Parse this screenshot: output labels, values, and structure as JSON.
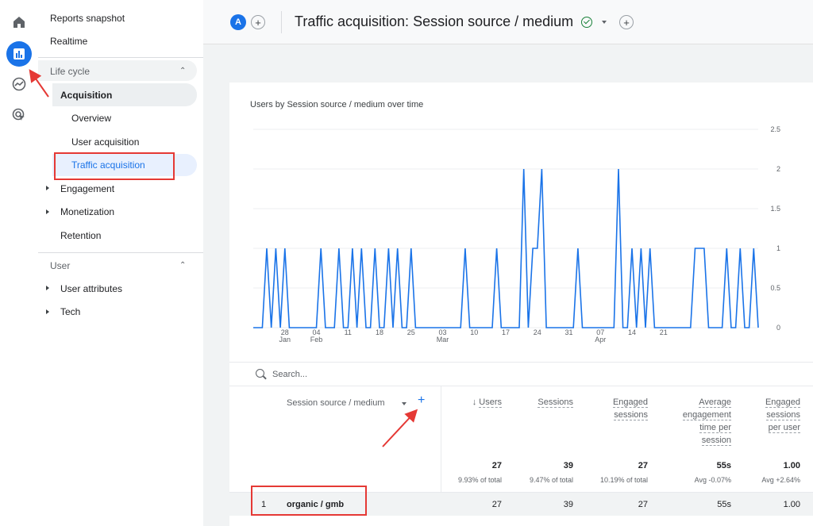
{
  "rail": {
    "items": [
      {
        "name": "home-icon",
        "active": false
      },
      {
        "name": "reports-icon",
        "active": true
      },
      {
        "name": "explore-icon",
        "active": false
      },
      {
        "name": "advertising-icon",
        "active": false
      }
    ]
  },
  "nav": {
    "reports_snapshot": "Reports snapshot",
    "realtime": "Realtime",
    "lifecycle": "Life cycle",
    "acquisition": "Acquisition",
    "overview": "Overview",
    "user_acquisition": "User acquisition",
    "traffic_acquisition": "Traffic acquisition",
    "engagement": "Engagement",
    "monetization": "Monetization",
    "retention": "Retention",
    "user": "User",
    "user_attributes": "User attributes",
    "tech": "Tech"
  },
  "header": {
    "avatar_letter": "A",
    "add_comparison": "+",
    "title": "Traffic acquisition: Session source / medium",
    "add": "+"
  },
  "chart_data": {
    "type": "line",
    "title": "Users by Session source / medium over time",
    "xlabel": "",
    "ylabel": "",
    "ylim": [
      0,
      2.5
    ],
    "y_ticks": [
      "0",
      "0.5",
      "1",
      "1.5",
      "2",
      "2.5"
    ],
    "x_tick_labels": [
      {
        "day": "28",
        "month": "Jan"
      },
      {
        "day": "04",
        "month": "Feb"
      },
      {
        "day": "11",
        "month": ""
      },
      {
        "day": "18",
        "month": ""
      },
      {
        "day": "25",
        "month": ""
      },
      {
        "day": "03",
        "month": "Mar"
      },
      {
        "day": "10",
        "month": ""
      },
      {
        "day": "17",
        "month": ""
      },
      {
        "day": "24",
        "month": ""
      },
      {
        "day": "31",
        "month": ""
      },
      {
        "day": "07",
        "month": "Apr"
      },
      {
        "day": "14",
        "month": ""
      },
      {
        "day": "21",
        "month": ""
      }
    ],
    "color": "#1a73e8",
    "series": [
      {
        "values": [
          0,
          0,
          0,
          1,
          0,
          1,
          0,
          1,
          0,
          0,
          0,
          0,
          0,
          0,
          0,
          1,
          0,
          0,
          0,
          1,
          0,
          0,
          1,
          0,
          1,
          0,
          0,
          1,
          0,
          0,
          1,
          0,
          1,
          0,
          0,
          1,
          0,
          0,
          0,
          0,
          0,
          0,
          0,
          0,
          0,
          0,
          0,
          1,
          0,
          0,
          0,
          0,
          0,
          0,
          1,
          0,
          0,
          0,
          0,
          0,
          2,
          0,
          1,
          1,
          2,
          0,
          0,
          0,
          0,
          0,
          0,
          0,
          1,
          0,
          0,
          0,
          0,
          0,
          0,
          0,
          0,
          2,
          0,
          0,
          1,
          0,
          1,
          0,
          1,
          0,
          0,
          0,
          0,
          0,
          0,
          0,
          0,
          0,
          1,
          1,
          1,
          0,
          0,
          0,
          0,
          1,
          0,
          0,
          1,
          0,
          0,
          1,
          0
        ]
      }
    ]
  },
  "search": {
    "placeholder": "Search..."
  },
  "table": {
    "dimension_header": "Session source / medium",
    "add_dimension": "+",
    "columns": [
      {
        "label": "Users",
        "sorted": true,
        "total": "27",
        "total_sub": "9.93% of total",
        "row": "27"
      },
      {
        "label": "Sessions",
        "total": "39",
        "total_sub": "9.47% of total",
        "row": "39"
      },
      {
        "label": "Engaged sessions",
        "total": "27",
        "total_sub": "10.19% of total",
        "row": "27"
      },
      {
        "label": "Average engagement time per session",
        "total": "55s",
        "total_sub": "Avg -0.07%",
        "row": "55s"
      },
      {
        "label": "Engaged sessions per user",
        "total": "1.00",
        "total_sub": "Avg +2.64%",
        "row": "1.00"
      }
    ],
    "row": {
      "index": "1",
      "dimension": "organic / gmb"
    }
  }
}
